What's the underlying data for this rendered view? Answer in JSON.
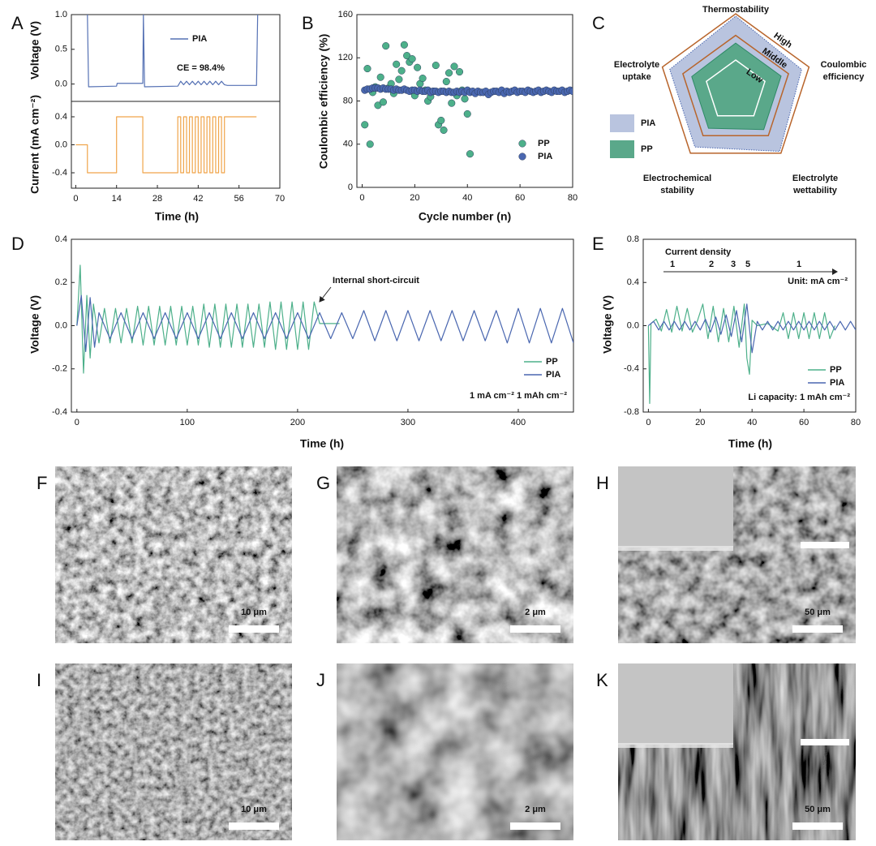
{
  "chart_data": [
    {
      "type": "line",
      "panel": "A",
      "ylabel": "Voltage (V)",
      "xlim": [
        -1.5,
        70
      ],
      "ylim": [
        -0.25,
        1.0
      ],
      "yticks": [
        {
          "value": 0,
          "label": "0.0"
        },
        0.5,
        {
          "value": 1,
          "label": "1.0"
        }
      ],
      "series": [
        {
          "name": "PIA",
          "color": "#5571b4",
          "x": [
            4,
            4.4,
            14,
            14.2,
            23,
            23.2,
            23.6,
            35,
            36,
            37,
            38,
            39,
            40,
            41,
            42,
            43,
            44,
            45,
            46,
            47,
            48,
            49,
            50,
            51,
            52,
            62,
            62.4
          ],
          "values": [
            1,
            -0.04,
            -0.03,
            0.01,
            0.01,
            1,
            -0.04,
            -0.03,
            0.04,
            -0.01,
            0.04,
            -0.01,
            0.04,
            -0.01,
            0.04,
            -0.01,
            0.04,
            -0.01,
            0.04,
            -0.01,
            0.04,
            -0.01,
            0.04,
            -0.01,
            -0.02,
            -0.02,
            1
          ]
        }
      ],
      "legend": "upper right",
      "annotations": [
        "CE = 98.4%"
      ]
    },
    {
      "type": "line",
      "ylabel": "Current (mA cm⁻²)",
      "xlabel": "Time (h)",
      "xlim": [
        -1.5,
        70
      ],
      "ylim": [
        -0.62,
        0.62
      ],
      "xticks": [
        0,
        14,
        28,
        42,
        56,
        70
      ],
      "yticks": [
        0.4,
        {
          "value": 0,
          "label": "0.0"
        },
        -0.4
      ],
      "color": "#f0a54a",
      "x": [
        0,
        4,
        4,
        14,
        14,
        23,
        23,
        35,
        35,
        36,
        36,
        37,
        37,
        38,
        38,
        39,
        39,
        40,
        40,
        41,
        41,
        42,
        42,
        43,
        43,
        44,
        44,
        45,
        45,
        46,
        46,
        47,
        47,
        48,
        48,
        49,
        49,
        50,
        50,
        51,
        51,
        62
      ],
      "values": [
        0,
        0,
        -0.4,
        -0.4,
        0.4,
        0.4,
        -0.4,
        -0.4,
        0.4,
        0.4,
        -0.4,
        -0.4,
        0.4,
        0.4,
        -0.4,
        -0.4,
        0.4,
        0.4,
        -0.4,
        -0.4,
        0.4,
        0.4,
        -0.4,
        -0.4,
        0.4,
        0.4,
        -0.4,
        -0.4,
        0.4,
        0.4,
        -0.4,
        -0.4,
        0.4,
        0.4,
        -0.4,
        -0.4,
        0.4,
        0.4,
        -0.4,
        -0.4,
        0.4,
        0.4
      ]
    },
    {
      "type": "scatter",
      "panel": "B",
      "ylabel": "Coulombic efficiency (%)",
      "xlabel": "Cycle number (n)",
      "xlim": [
        -2,
        80
      ],
      "ylim": [
        0,
        160
      ],
      "xticks": [
        0,
        20,
        40,
        60,
        80
      ],
      "yticks": [
        0,
        40,
        80,
        120,
        160
      ],
      "legend": "lower right",
      "series": [
        {
          "name": "PP",
          "color": "#4db08a",
          "x": [
            1,
            2,
            3,
            4,
            5,
            6,
            7,
            8,
            9,
            10,
            11,
            12,
            13,
            14,
            15,
            16,
            17,
            18,
            19,
            20,
            21,
            22,
            23,
            24,
            25,
            26,
            27,
            28,
            29,
            30,
            31,
            32,
            33,
            34,
            35,
            36,
            37,
            38,
            39,
            40,
            41
          ],
          "values": [
            58,
            110,
            40,
            88,
            93,
            76,
            102,
            79,
            131,
            92,
            96,
            87,
            114,
            100,
            108,
            132,
            122,
            116,
            119,
            85,
            111,
            96,
            101,
            90,
            80,
            84,
            89,
            113,
            58,
            62,
            53,
            98,
            106,
            78,
            112,
            85,
            107,
            90,
            82,
            68,
            31
          ]
        },
        {
          "name": "PIA",
          "color": "#4a67b0",
          "x": [
            1,
            2,
            3,
            4,
            5,
            6,
            7,
            8,
            9,
            10,
            11,
            12,
            13,
            14,
            15,
            16,
            17,
            18,
            19,
            20,
            21,
            22,
            23,
            24,
            25,
            26,
            27,
            28,
            29,
            30,
            31,
            32,
            33,
            34,
            35,
            36,
            37,
            38,
            39,
            40,
            41,
            42,
            43,
            44,
            45,
            46,
            47,
            48,
            49,
            50,
            51,
            52,
            53,
            54,
            55,
            56,
            57,
            58,
            59,
            60,
            61,
            62,
            63,
            64,
            65,
            66,
            67,
            68,
            69,
            70,
            71,
            72,
            73,
            74,
            75,
            76,
            77,
            78,
            79,
            80
          ],
          "values": [
            90,
            91,
            91,
            92,
            92,
            92,
            91,
            92,
            91,
            91,
            91,
            90,
            91,
            90,
            90,
            91,
            90,
            89,
            90,
            90,
            89,
            90,
            89,
            89,
            90,
            88,
            89,
            89,
            88,
            89,
            89,
            88,
            89,
            88,
            88,
            89,
            88,
            89,
            88,
            90,
            88,
            89,
            87,
            89,
            88,
            88,
            89,
            86,
            88,
            89,
            89,
            88,
            90,
            87,
            89,
            88,
            89,
            90,
            88,
            89,
            89,
            88,
            90,
            89,
            88,
            89,
            90,
            88,
            89,
            90,
            89,
            88,
            90,
            89,
            89,
            90,
            88,
            89,
            90,
            89
          ]
        }
      ]
    },
    {
      "type": "radar",
      "panel": "C",
      "rlim": [
        0,
        1
      ],
      "categories": [
        [
          "Thermostability"
        ],
        [
          "Coulombic",
          "efficiency"
        ],
        [
          "Electrolyte",
          "wettability"
        ],
        [
          "Electrochemical",
          "stability"
        ],
        [
          "Electrolyte",
          "uptake"
        ]
      ],
      "levels": [
        "Low",
        "Middle",
        "High"
      ],
      "level_color": "#b8652c",
      "series": [
        {
          "name": "PIA",
          "color": "#b9c4df",
          "values": [
            0.97,
            0.9,
            0.97,
            0.9,
            0.9
          ]
        },
        {
          "name": "PP",
          "color": "#5aa88a",
          "values": [
            0.62,
            0.62,
            0.62,
            0.6,
            0.6
          ]
        }
      ]
    },
    {
      "type": "line",
      "panel": "D",
      "ylabel": "Voltage (V)",
      "xlabel": "Time (h)",
      "xlim": [
        -5,
        450
      ],
      "ylim": [
        -0.4,
        0.4
      ],
      "xticks": [
        0,
        100,
        200,
        300,
        400
      ],
      "yticks": [
        -0.4,
        -0.2,
        {
          "value": 0,
          "label": "0.0"
        },
        0.2,
        0.4
      ],
      "legend": "lower right",
      "annotations": [
        "Internal short-circuit",
        "1 mA cm⁻² 1 mAh cm⁻²"
      ],
      "series": [
        {
          "name": "PP",
          "color": "#4db08a",
          "x": [
            0,
            3,
            6,
            9,
            12,
            15,
            20,
            25,
            30,
            35,
            40,
            45,
            50,
            55,
            60,
            65,
            70,
            75,
            80,
            85,
            90,
            95,
            100,
            105,
            110,
            115,
            120,
            125,
            130,
            135,
            140,
            145,
            150,
            155,
            160,
            165,
            170,
            175,
            180,
            185,
            190,
            195,
            200,
            205,
            210,
            215,
            220,
            238
          ],
          "values": [
            0,
            0.28,
            -0.22,
            0.14,
            -0.15,
            0.1,
            -0.08,
            0.08,
            -0.08,
            0.08,
            -0.08,
            0.08,
            -0.08,
            0.09,
            -0.09,
            0.09,
            -0.09,
            0.09,
            -0.09,
            0.09,
            -0.09,
            0.09,
            -0.09,
            0.09,
            -0.09,
            0.1,
            -0.1,
            0.1,
            -0.1,
            0.1,
            -0.1,
            0.1,
            -0.1,
            0.1,
            -0.1,
            0.1,
            -0.1,
            0.11,
            -0.11,
            0.11,
            -0.11,
            0.11,
            -0.11,
            0.11,
            -0.11,
            0.11,
            0.01,
            0.01
          ]
        },
        {
          "name": "PIA",
          "color": "#4a67b0",
          "x": [
            0,
            4,
            8,
            12,
            16,
            20,
            30,
            40,
            50,
            60,
            70,
            80,
            90,
            100,
            110,
            120,
            130,
            140,
            150,
            160,
            170,
            180,
            190,
            200,
            210,
            220,
            230,
            240,
            250,
            260,
            270,
            280,
            290,
            300,
            310,
            320,
            330,
            340,
            350,
            360,
            370,
            380,
            390,
            400,
            410,
            420,
            430,
            440,
            450
          ],
          "values": [
            0,
            0.14,
            -0.12,
            0.13,
            -0.1,
            0.06,
            -0.06,
            0.06,
            -0.06,
            0.06,
            -0.06,
            0.06,
            -0.06,
            0.06,
            -0.06,
            0.06,
            -0.06,
            0.06,
            -0.06,
            0.06,
            -0.06,
            0.06,
            -0.06,
            0.06,
            -0.06,
            0.06,
            -0.06,
            0.06,
            -0.06,
            0.07,
            -0.07,
            0.07,
            -0.07,
            0.07,
            -0.07,
            0.07,
            -0.07,
            0.07,
            -0.07,
            0.07,
            -0.07,
            0.07,
            -0.08,
            0.08,
            -0.08,
            0.08,
            -0.08,
            0.08,
            -0.08
          ]
        }
      ]
    },
    {
      "type": "line",
      "panel": "E",
      "ylabel": "Voltage (V)",
      "xlabel": "Time (h)",
      "xlim": [
        -2,
        80
      ],
      "ylim": [
        -0.8,
        0.8
      ],
      "xticks": [
        0,
        20,
        40,
        60,
        80
      ],
      "yticks": [
        -0.8,
        -0.4,
        {
          "value": 0,
          "label": "0.0"
        },
        0.4,
        0.8
      ],
      "legend": "lower right",
      "annotations": [
        "Current density",
        "1",
        "2",
        "3",
        "5",
        "1",
        "Unit: mA cm⁻²",
        "Li capacity: 1 mAh cm⁻²"
      ],
      "series": [
        {
          "name": "PP",
          "color": "#4db08a",
          "x": [
            0,
            0.5,
            1,
            3,
            5,
            7,
            9,
            11,
            13,
            15,
            17,
            19,
            21,
            23,
            25,
            27,
            29,
            31,
            33,
            35,
            37,
            38,
            39,
            40,
            42,
            46,
            50,
            52,
            54,
            56,
            58,
            60,
            62,
            64,
            66,
            68,
            70,
            72
          ],
          "values": [
            0,
            -0.72,
            0.02,
            0.06,
            -0.05,
            0.15,
            -0.06,
            0.18,
            -0.05,
            0.16,
            -0.06,
            0.05,
            0.2,
            -0.12,
            0.18,
            -0.15,
            0.16,
            -0.15,
            0.18,
            -0.2,
            0.2,
            -0.3,
            -0.45,
            0.05,
            0,
            0.02,
            -0.05,
            0.12,
            -0.12,
            0.12,
            -0.12,
            0.12,
            -0.12,
            0.12,
            -0.12,
            0.12,
            -0.12,
            0
          ]
        },
        {
          "name": "PIA",
          "color": "#4a67b0",
          "x": [
            0,
            2,
            4,
            6,
            8,
            10,
            12,
            14,
            16,
            18,
            20,
            22,
            24,
            26,
            28,
            30,
            32,
            34,
            36,
            38,
            40,
            42,
            44,
            46,
            48,
            50,
            52,
            54,
            56,
            58,
            60,
            62,
            64,
            66,
            68,
            70,
            72,
            74,
            76,
            78,
            80
          ],
          "values": [
            0,
            0.04,
            -0.04,
            0.04,
            -0.04,
            0.04,
            -0.04,
            0.04,
            -0.04,
            0.04,
            -0.04,
            0.06,
            -0.06,
            0.08,
            -0.08,
            0.1,
            -0.1,
            0.14,
            -0.15,
            0.2,
            -0.25,
            0.04,
            -0.04,
            0.04,
            -0.04,
            0.04,
            -0.04,
            0.04,
            -0.04,
            0.04,
            -0.04,
            0.04,
            -0.04,
            0.04,
            -0.04,
            0.04,
            -0.04,
            0.04,
            -0.04,
            0.04,
            -0.04
          ]
        }
      ]
    }
  ],
  "images": [
    {
      "panel": "F",
      "scale_bar": "10 μm"
    },
    {
      "panel": "G",
      "scale_bar": "2 μm"
    },
    {
      "panel": "H",
      "scale_bar": "50 μm"
    },
    {
      "panel": "I",
      "scale_bar": "10 μm"
    },
    {
      "panel": "J",
      "scale_bar": "2 μm"
    },
    {
      "panel": "K",
      "scale_bar": "50 μm"
    }
  ]
}
